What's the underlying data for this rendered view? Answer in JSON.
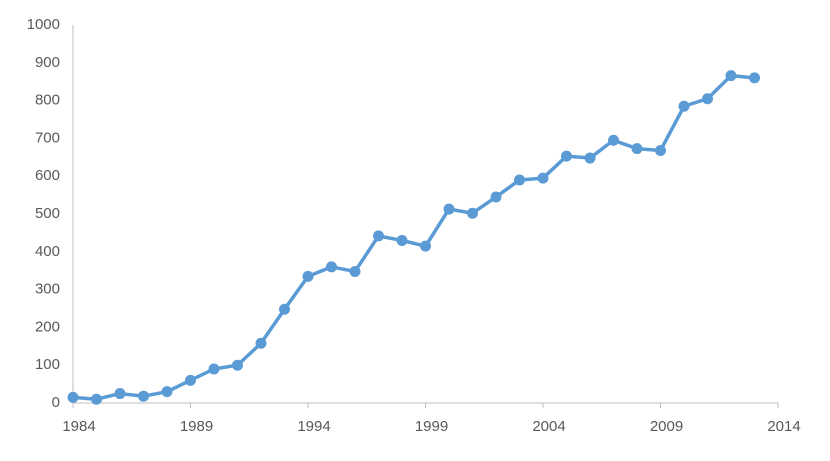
{
  "chart_data": {
    "type": "line",
    "x": [
      1984,
      1985,
      1986,
      1987,
      1988,
      1989,
      1990,
      1991,
      1992,
      1993,
      1994,
      1995,
      1996,
      1997,
      1998,
      1999,
      2000,
      2001,
      2002,
      2003,
      2004,
      2005,
      2006,
      2007,
      2008,
      2009,
      2010,
      2011,
      2012,
      2013
    ],
    "series": [
      {
        "color": "#5b9bd5",
        "values": [
          15,
          10,
          25,
          18,
          30,
          60,
          90,
          100,
          158,
          248,
          335,
          360,
          348,
          442,
          430,
          415,
          513,
          502,
          545,
          590,
          595,
          653,
          648,
          695,
          673,
          668,
          785,
          805,
          866,
          860
        ]
      }
    ],
    "xlim": [
      1984,
      2014
    ],
    "xticks": [
      1984,
      1989,
      1994,
      1999,
      2004,
      2009,
      2014
    ],
    "ylim": [
      0,
      1000
    ],
    "yticks": [
      0,
      100,
      200,
      300,
      400,
      500,
      600,
      700,
      800,
      900,
      1000
    ],
    "grid": false
  }
}
